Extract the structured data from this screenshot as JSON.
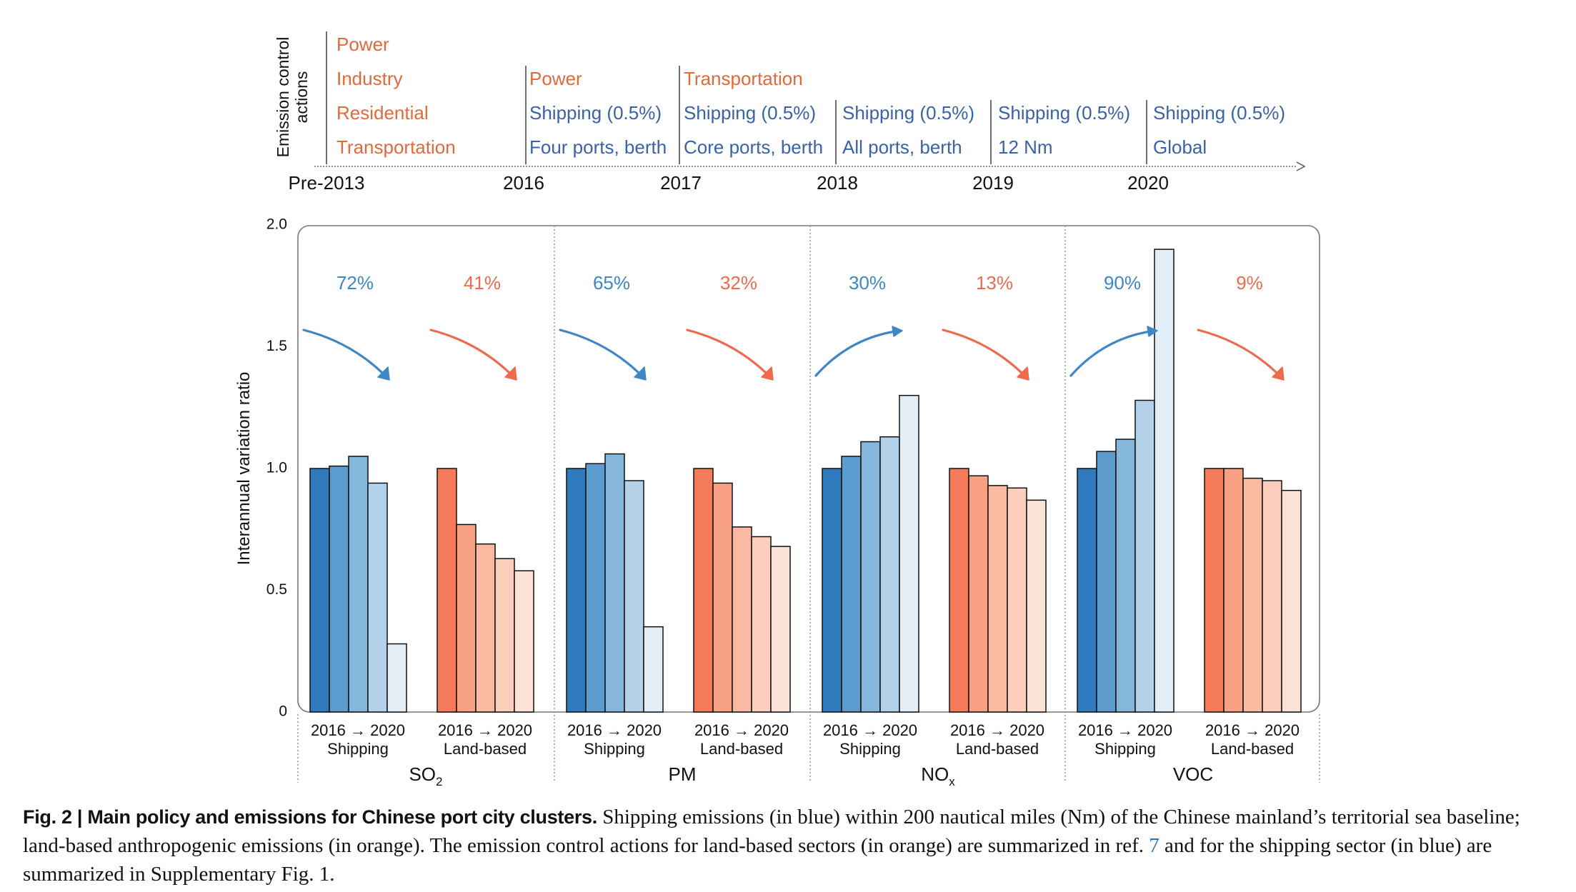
{
  "timeline": {
    "axis_label_line1": "Emission control",
    "axis_label_line2": "actions",
    "years": [
      "Pre-2013",
      "2016",
      "2017",
      "2018",
      "2019",
      "2020"
    ],
    "groups": [
      {
        "land": [
          "Power",
          "Industry",
          "Residential",
          "Transportation"
        ],
        "ship": []
      },
      {
        "land": [
          "Power"
        ],
        "ship": [
          "Shipping (0.5%)",
          "Four ports, berth"
        ]
      },
      {
        "land": [
          "Transportation"
        ],
        "ship": [
          "Shipping (0.5%)",
          "Core ports, berth"
        ]
      },
      {
        "land": [],
        "ship": [
          "Shipping (0.5%)",
          "All ports, berth"
        ]
      },
      {
        "land": [],
        "ship": [
          "Shipping (0.5%)",
          "12 Nm"
        ]
      },
      {
        "land": [],
        "ship": [
          "Shipping (0.5%)",
          "Global"
        ]
      }
    ],
    "colors": {
      "land": "#e06a3c",
      "ship": "#3a62a6"
    }
  },
  "chart_data": {
    "type": "bar",
    "ylabel": "Interannual variation ratio",
    "ylim": [
      0,
      2.0
    ],
    "yticks": [
      "0",
      "0.5",
      "1.0",
      "1.5",
      "2.0"
    ],
    "xlabel_pair": [
      "2016",
      "→",
      "2020"
    ],
    "series_years": [
      2016,
      2017,
      2018,
      2019,
      2020
    ],
    "groups": [
      {
        "pollutant": "SO",
        "sub": "2",
        "shipping": {
          "label": "Shipping",
          "values": [
            1.0,
            1.01,
            1.05,
            0.94,
            0.28
          ],
          "change": "72%",
          "direction": "down"
        },
        "land": {
          "label": "Land-based",
          "values": [
            1.0,
            0.77,
            0.69,
            0.63,
            0.58
          ],
          "change": "41%",
          "direction": "down"
        }
      },
      {
        "pollutant": "PM",
        "sub": "",
        "shipping": {
          "label": "Shipping",
          "values": [
            1.0,
            1.02,
            1.06,
            0.95,
            0.35
          ],
          "change": "65%",
          "direction": "down"
        },
        "land": {
          "label": "Land-based",
          "values": [
            1.0,
            0.94,
            0.76,
            0.72,
            0.68
          ],
          "change": "32%",
          "direction": "down"
        }
      },
      {
        "pollutant": "NO",
        "sub": "x",
        "shipping": {
          "label": "Shipping",
          "values": [
            1.0,
            1.05,
            1.11,
            1.13,
            1.3
          ],
          "change": "30%",
          "direction": "up"
        },
        "land": {
          "label": "Land-based",
          "values": [
            1.0,
            0.97,
            0.93,
            0.92,
            0.87
          ],
          "change": "13%",
          "direction": "down"
        }
      },
      {
        "pollutant": "VOC",
        "sub": "",
        "shipping": {
          "label": "Shipping",
          "values": [
            1.0,
            1.07,
            1.12,
            1.28,
            1.9
          ],
          "change": "90%",
          "direction": "up"
        },
        "land": {
          "label": "Land-based",
          "values": [
            1.0,
            1.0,
            0.96,
            0.95,
            0.91
          ],
          "change": "9%",
          "direction": "down"
        }
      }
    ],
    "colors": {
      "shipping": [
        "#2f7bbd",
        "#5b9bcd",
        "#85b7dc",
        "#b3d1e9",
        "#e4eef7"
      ],
      "land": [
        "#f57a5a",
        "#f8a083",
        "#fabaa2",
        "#fccfbd",
        "#fde3d7"
      ],
      "ship_text": "#3f86c4",
      "land_text": "#ee6a4f"
    }
  },
  "caption": {
    "title": "Fig. 2 | Main policy and emissions for Chinese port city clusters.",
    "text_a": " Shipping emissions (in blue) within 200 nautical miles (Nm) of the Chinese mainland’s territorial sea baseline; land-based anthropogenic emissions (in orange). The emission control actions for land-based sectors (in orange) are summarized in ref. ",
    "ref": "7",
    "text_b": " and for the shipping sector (in blue) are summarized in Supplementary Fig. 1."
  }
}
